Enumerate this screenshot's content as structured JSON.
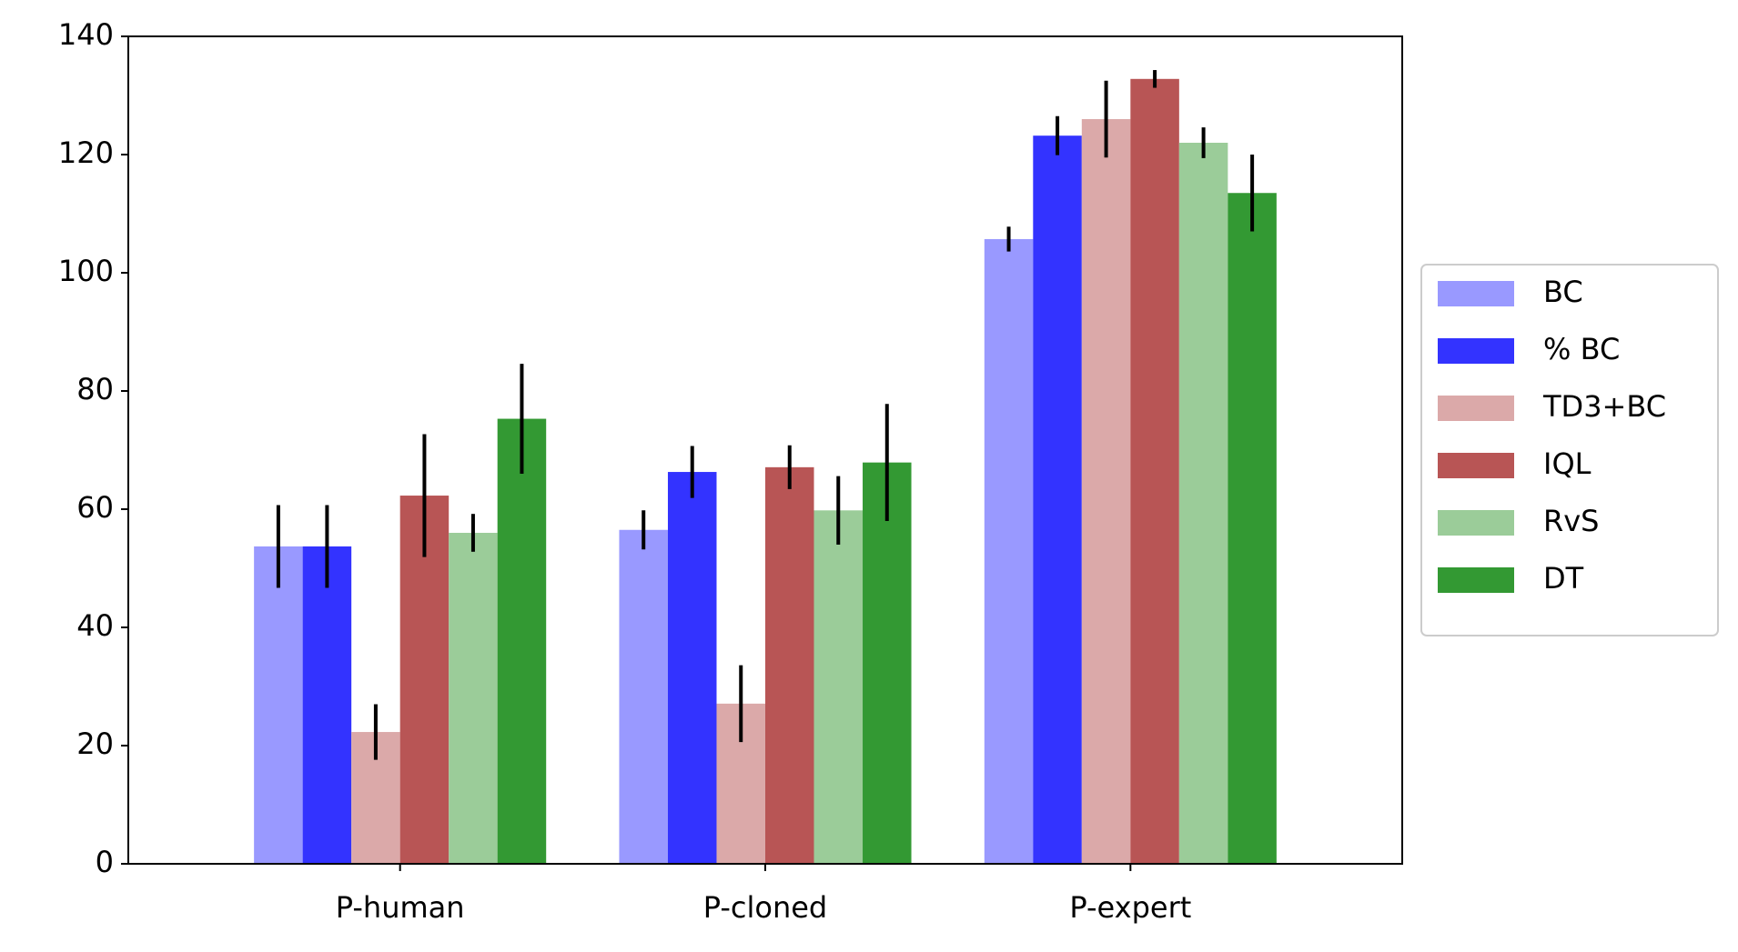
{
  "chart_data": {
    "type": "bar",
    "categories": [
      "P-human",
      "P-cloned",
      "P-expert"
    ],
    "series": [
      {
        "name": "BC",
        "color": "#9999ff",
        "values": [
          53.7,
          56.5,
          105.7
        ],
        "errors": [
          7,
          3.3,
          2.1
        ]
      },
      {
        "name": "% BC",
        "color": "#3333ff",
        "values": [
          53.7,
          66.3,
          123.2
        ],
        "errors": [
          7,
          4.4,
          3.3
        ]
      },
      {
        "name": "TD3+BC",
        "color": "#dba9a9",
        "values": [
          22.3,
          27.1,
          126
        ],
        "errors": [
          4.7,
          6.5,
          6.5
        ]
      },
      {
        "name": "IQL",
        "color": "#b85555",
        "values": [
          62.3,
          67.1,
          132.8
        ],
        "errors": [
          10.4,
          3.7,
          1.5
        ]
      },
      {
        "name": "RvS",
        "color": "#9bcc99",
        "values": [
          56,
          59.8,
          122
        ],
        "errors": [
          3.2,
          5.8,
          2.6
        ]
      },
      {
        "name": "DT",
        "color": "#339933",
        "values": [
          75.3,
          67.9,
          113.5
        ],
        "errors": [
          9.3,
          9.9,
          6.5
        ]
      }
    ],
    "ylim": [
      0,
      140
    ],
    "yticks": [
      0,
      20,
      40,
      60,
      80,
      100,
      120,
      140
    ],
    "legend": "right"
  }
}
